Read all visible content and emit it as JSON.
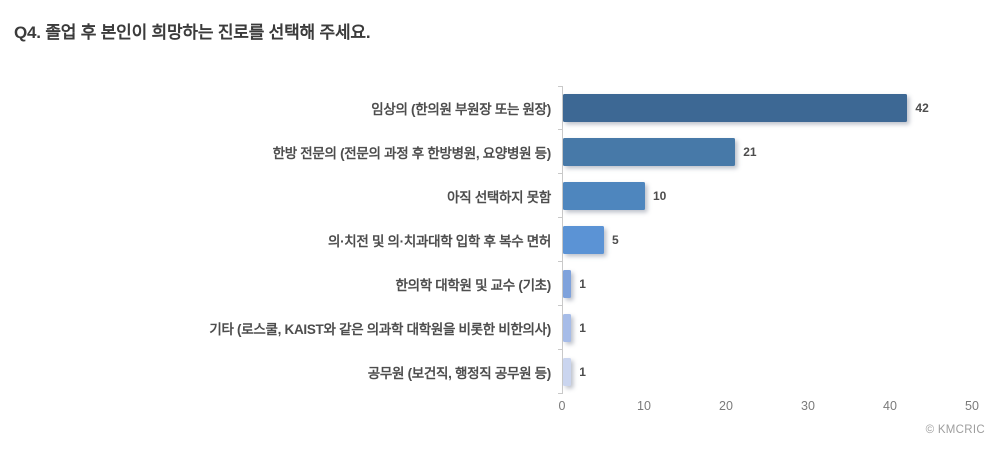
{
  "page": {
    "title": "Q4. 졸업 후 본인이 희망하는 진로를 선택해 주세요.",
    "credit": "© KMCRIC"
  },
  "chart_data": {
    "type": "bar",
    "orientation": "horizontal",
    "title": "Q4. 졸업 후 본인이 희망하는 진로를 선택해 주세요.",
    "categories": [
      "임상의 (한의원 부원장 또는 원장)",
      "한방 전문의 (전문의 과정 후 한방병원, 요양병원 등)",
      "아직 선택하지 못함",
      "의·치전 및 의·치과대학 입학 후 복수 면허",
      "한의학 대학원 및 교수 (기초)",
      "기타 (로스쿨, KAIST와 같은 의과학 대학원을 비롯한 비한의사)",
      "공무원 (보건직, 행정직 공무원 등)"
    ],
    "values": [
      42,
      21,
      10,
      5,
      1,
      1,
      1
    ],
    "bar_colors": [
      "#3d6894",
      "#4779a8",
      "#4e86be",
      "#5b93d5",
      "#7ea2dc",
      "#a6bce8",
      "#cad5ef"
    ],
    "value_labels": true,
    "xlim": [
      0,
      50
    ],
    "xticks": [
      0,
      10,
      20,
      30,
      40,
      50
    ],
    "grid": false,
    "legend": false
  }
}
